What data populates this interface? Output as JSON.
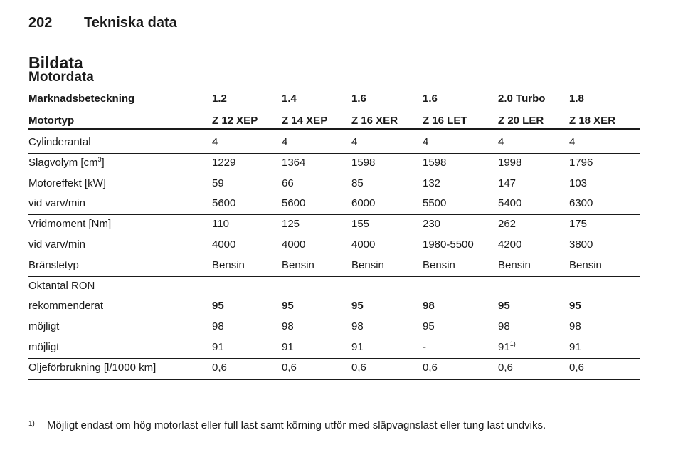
{
  "header": {
    "page_number": "202",
    "title": "Tekniska data"
  },
  "section_title": "Bildata",
  "subsection_title": "Motordata",
  "table": {
    "header_rows": [
      [
        "Marknadsbeteckning",
        "1.2",
        "1.4",
        "1.6",
        "1.6",
        "2.0 Turbo",
        "1.8"
      ],
      [
        "Motortyp",
        "Z 12 XEP",
        "Z 14 XEP",
        "Z 16 XER",
        "Z 16 LET",
        "Z 20 LER",
        "Z 18 XER"
      ]
    ],
    "groups": [
      [
        [
          "Cylinderantal",
          "4",
          "4",
          "4",
          "4",
          "4",
          "4"
        ]
      ],
      [
        [
          {
            "text": "Slagvolym [cm",
            "sup": "3",
            "after": "]"
          },
          "1229",
          "1364",
          "1598",
          "1598",
          "1998",
          "1796"
        ]
      ],
      [
        [
          "Motoreffekt [kW]",
          "59",
          "66",
          "85",
          "132",
          "147",
          "103"
        ],
        [
          "vid varv/min",
          "5600",
          "5600",
          "6000",
          "5500",
          "5400",
          "6300"
        ]
      ],
      [
        [
          "Vridmoment [Nm]",
          "110",
          "125",
          "155",
          "230",
          "262",
          "175"
        ],
        [
          "vid varv/min",
          "4000",
          "4000",
          "4000",
          "1980-5500",
          "4200",
          "3800"
        ]
      ],
      [
        [
          "Bränsletyp",
          "Bensin",
          "Bensin",
          "Bensin",
          "Bensin",
          "Bensin",
          "Bensin"
        ]
      ],
      [
        [
          "Oktantal RON"
        ],
        [
          "rekommenderat",
          "95",
          "95",
          "95",
          "98",
          "95",
          "95"
        ],
        [
          "möjligt",
          "98",
          "98",
          "98",
          "95",
          "98",
          "98"
        ],
        [
          "möjligt",
          "91",
          "91",
          "91",
          "-",
          {
            "text": "91",
            "sup": "1)"
          },
          "91"
        ]
      ],
      [
        [
          "Oljeförbrukning [l/1000 km]",
          "0,6",
          "0,6",
          "0,6",
          "0,6",
          "0,6",
          "0,6"
        ]
      ]
    ]
  },
  "footnote": {
    "marker": "1)",
    "text": "Möjligt endast om hög motorlast eller full last samt körning utför med släpvagnslast eller tung last undviks."
  }
}
